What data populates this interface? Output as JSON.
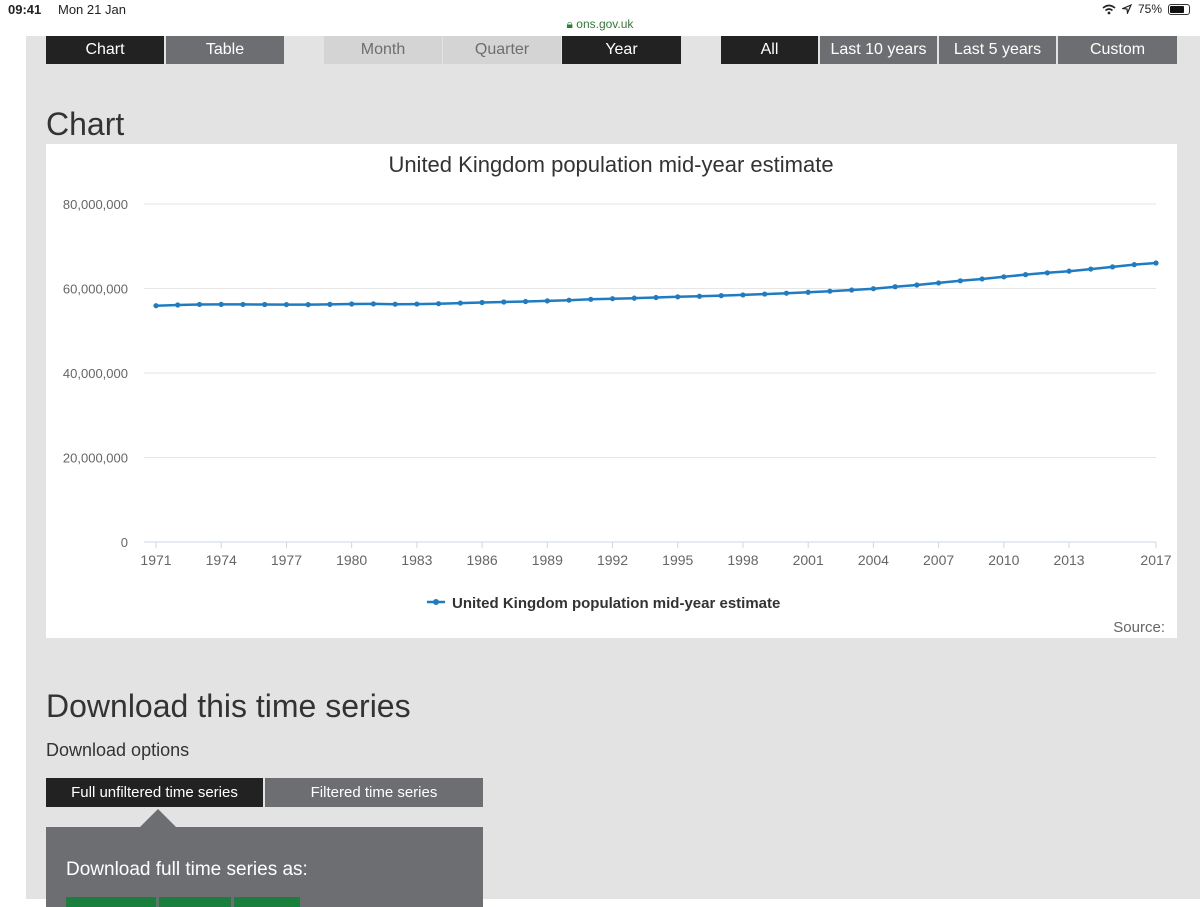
{
  "statusbar": {
    "time": "09:41",
    "date": "Mon 21 Jan",
    "url": "ons.gov.uk",
    "battery": "75%",
    "battery_level": 0.75
  },
  "view_toggle": {
    "chart": "Chart",
    "table": "Table"
  },
  "frequency": {
    "month": "Month",
    "quarter": "Quarter",
    "year": "Year"
  },
  "range": {
    "all": "All",
    "last10": "Last 10 years",
    "last5": "Last 5 years",
    "custom": "Custom"
  },
  "chart_heading": "Chart",
  "chart_data": {
    "type": "line",
    "title": "United Kingdom population mid-year estimate",
    "xlabel": "",
    "ylabel": "",
    "ylim": [
      0,
      80000000
    ],
    "xlim": [
      1971,
      2017
    ],
    "yticks": [
      "0",
      "20,000,000",
      "40,000,000",
      "60,000,000",
      "80,000,000"
    ],
    "ytick_values": [
      0,
      20000000,
      40000000,
      60000000,
      80000000
    ],
    "xticks": [
      "1971",
      "1974",
      "1977",
      "1980",
      "1983",
      "1986",
      "1989",
      "1992",
      "1995",
      "1998",
      "2001",
      "2004",
      "2007",
      "2010",
      "2013",
      "2017"
    ],
    "grid": true,
    "legend": "bottom-center",
    "color": "#1f7cc1",
    "series": [
      {
        "name": "United Kingdom population mid-year estimate",
        "x": [
          1971,
          1972,
          1973,
          1974,
          1975,
          1976,
          1977,
          1978,
          1979,
          1980,
          1981,
          1982,
          1983,
          1984,
          1985,
          1986,
          1987,
          1988,
          1989,
          1990,
          1991,
          1992,
          1993,
          1994,
          1995,
          1996,
          1997,
          1998,
          1999,
          2000,
          2001,
          2002,
          2003,
          2004,
          2005,
          2006,
          2007,
          2008,
          2009,
          2010,
          2011,
          2012,
          2013,
          2014,
          2015,
          2016,
          2017
        ],
        "values": [
          55928000,
          56097000,
          56223000,
          56236000,
          56226000,
          56216000,
          56190000,
          56178000,
          56240000,
          56330000,
          56357000,
          56291000,
          56316000,
          56409000,
          56554000,
          56684000,
          56804000,
          56916000,
          57076000,
          57237000,
          57439000,
          57585000,
          57714000,
          57862000,
          58025000,
          58164000,
          58314000,
          58475000,
          58684000,
          58886000,
          59113000,
          59366000,
          59637000,
          59950000,
          60413000,
          60827000,
          61319000,
          61824000,
          62260000,
          62759000,
          63285000,
          63705000,
          64106000,
          64597000,
          65110000,
          65648000,
          66040000
        ]
      }
    ],
    "source": "Source:"
  },
  "download": {
    "heading": "Download this time series",
    "options_label": "Download options",
    "tab_full": "Full unfiltered time series",
    "tab_filtered": "Filtered time series",
    "panel_text": "Download full time series as:"
  }
}
